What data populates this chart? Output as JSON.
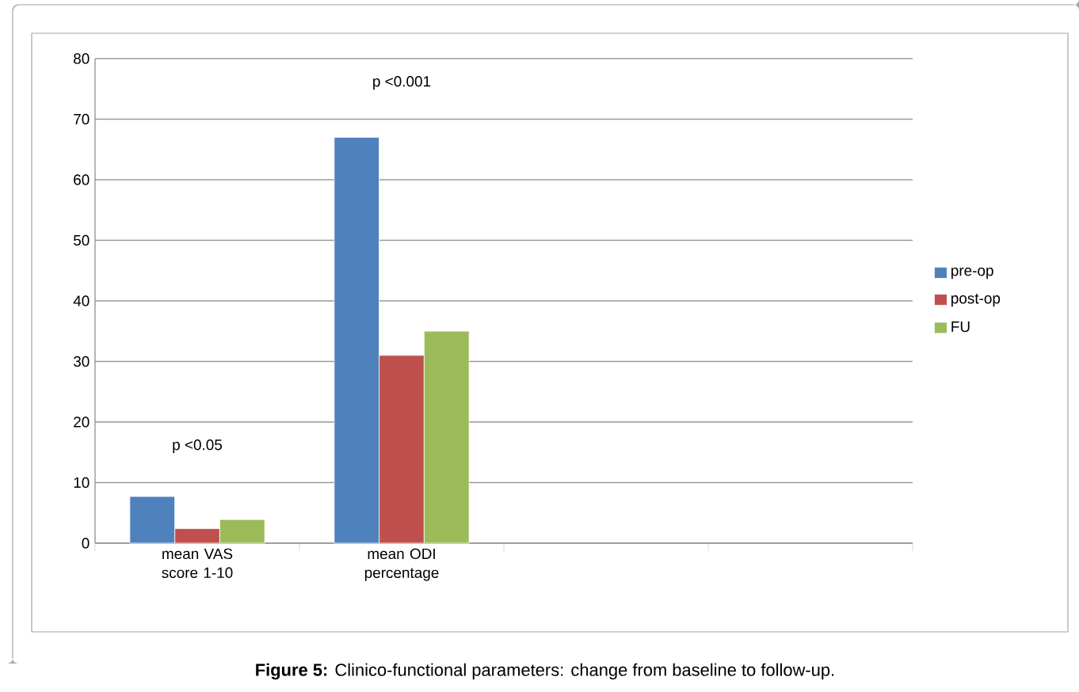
{
  "chart_data": {
    "type": "bar",
    "categories": [
      "mean VAS score 1-10",
      "mean ODI percentage",
      null,
      null
    ],
    "series": [
      {
        "name": "pre-op",
        "color": "#4f81bd",
        "values": [
          7.7,
          67,
          null,
          null
        ]
      },
      {
        "name": "post-op",
        "color": "#c0504d",
        "values": [
          2.4,
          31,
          null,
          null
        ]
      },
      {
        "name": "FU",
        "color": "#9bbb59",
        "values": [
          3.9,
          35,
          null,
          null
        ]
      }
    ],
    "ylim": [
      0,
      80
    ],
    "yticks": [
      0,
      10,
      20,
      30,
      40,
      50,
      60,
      70,
      80
    ],
    "grid": "y",
    "legend": "right",
    "annotations": [
      "p <0.05",
      "p <0.001",
      "**Figure 5:** Clinico-functional parameters: change from baseline to follow-up."
    ]
  }
}
